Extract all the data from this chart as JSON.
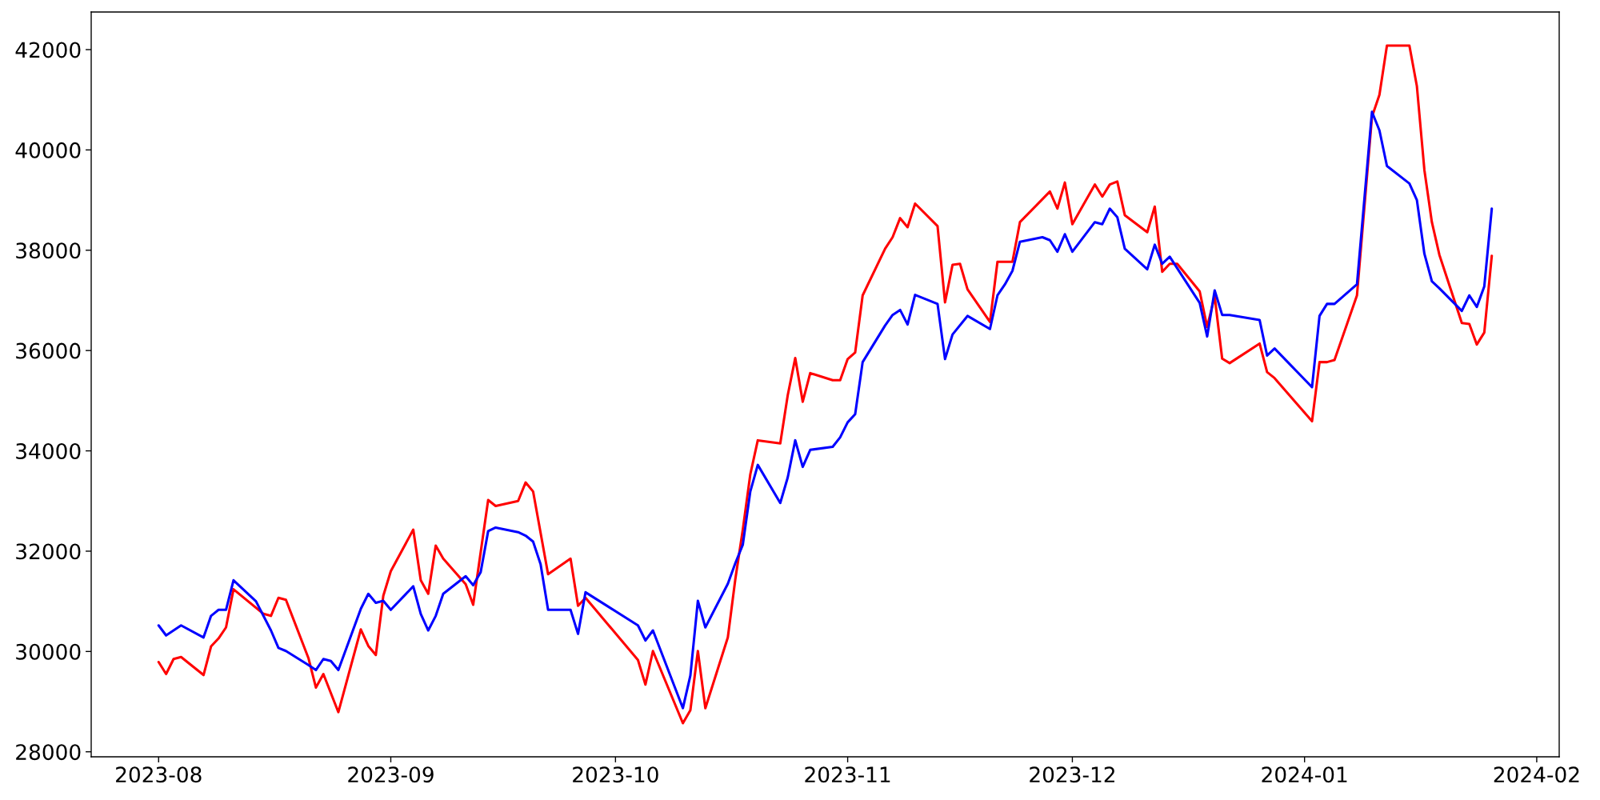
{
  "chart_data": {
    "type": "line",
    "xlim": [
      "2023-07-23",
      "2024-02-04"
    ],
    "ylim": [
      27900,
      42750
    ],
    "xticks": [
      "2023-08",
      "2023-09",
      "2023-10",
      "2023-11",
      "2023-12",
      "2024-01",
      "2024-02"
    ],
    "yticks": [
      28000,
      30000,
      32000,
      34000,
      36000,
      38000,
      40000,
      42000
    ],
    "series": [
      {
        "color": "#ff0000",
        "x": [
          "2023-08-01",
          "2023-08-02",
          "2023-08-03",
          "2023-08-04",
          "2023-08-07",
          "2023-08-08",
          "2023-08-09",
          "2023-08-10",
          "2023-08-11",
          "2023-08-15",
          "2023-08-16",
          "2023-08-17",
          "2023-08-18",
          "2023-08-21",
          "2023-08-22",
          "2023-08-23",
          "2023-08-25",
          "2023-08-28",
          "2023-08-29",
          "2023-08-30",
          "2023-08-31",
          "2023-09-01",
          "2023-09-04",
          "2023-09-05",
          "2023-09-06",
          "2023-09-07",
          "2023-09-08",
          "2023-09-11",
          "2023-09-12",
          "2023-09-14",
          "2023-09-15",
          "2023-09-18",
          "2023-09-19",
          "2023-09-20",
          "2023-09-22",
          "2023-09-25",
          "2023-09-26",
          "2023-09-27",
          "2023-10-04",
          "2023-10-05",
          "2023-10-06",
          "2023-10-10",
          "2023-10-11",
          "2023-10-12",
          "2023-10-13",
          "2023-10-16",
          "2023-10-17",
          "2023-10-18",
          "2023-10-19",
          "2023-10-20",
          "2023-10-23",
          "2023-10-24",
          "2023-10-25",
          "2023-10-26",
          "2023-10-27",
          "2023-10-30",
          "2023-10-31",
          "2023-11-01",
          "2023-11-02",
          "2023-11-03",
          "2023-11-06",
          "2023-11-07",
          "2023-11-08",
          "2023-11-09",
          "2023-11-10",
          "2023-11-13",
          "2023-11-14",
          "2023-11-15",
          "2023-11-16",
          "2023-11-17",
          "2023-11-20",
          "2023-11-21",
          "2023-11-22",
          "2023-11-23",
          "2023-11-24",
          "2023-11-28",
          "2023-11-29",
          "2023-11-30",
          "2023-12-01",
          "2023-12-04",
          "2023-12-05",
          "2023-12-06",
          "2023-12-07",
          "2023-12-08",
          "2023-12-11",
          "2023-12-12",
          "2023-12-13",
          "2023-12-14",
          "2023-12-15",
          "2023-12-18",
          "2023-12-19",
          "2023-12-20",
          "2023-12-21",
          "2023-12-22",
          "2023-12-26",
          "2023-12-27",
          "2023-12-28",
          "2024-01-02",
          "2024-01-03",
          "2024-01-04",
          "2024-01-05",
          "2024-01-08",
          "2024-01-10",
          "2024-01-11",
          "2024-01-12",
          "2024-01-15",
          "2024-01-16",
          "2024-01-17",
          "2024-01-18",
          "2024-01-19",
          "2024-01-22",
          "2024-01-23",
          "2024-01-24",
          "2024-01-25",
          "2024-01-26"
        ],
        "values": [
          29790,
          29550,
          29850,
          29890,
          29530,
          30100,
          30260,
          30480,
          31240,
          30750,
          30710,
          31070,
          31030,
          29870,
          29280,
          29550,
          28790,
          30440,
          30110,
          29930,
          31110,
          31600,
          32430,
          31420,
          31150,
          32110,
          31850,
          31340,
          30930,
          33020,
          32900,
          33000,
          33370,
          33190,
          31540,
          31850,
          30910,
          31070,
          29830,
          29340,
          30010,
          28570,
          28830,
          30010,
          28870,
          30280,
          31440,
          32430,
          33530,
          34210,
          34150,
          35110,
          35850,
          34980,
          35550,
          35410,
          35410,
          35830,
          35960,
          37100,
          38030,
          38260,
          38640,
          38460,
          38930,
          38480,
          36960,
          37710,
          37730,
          37220,
          36570,
          37770,
          37770,
          37770,
          38560,
          39170,
          38830,
          39350,
          38520,
          39310,
          39070,
          39310,
          39370,
          38700,
          38360,
          38870,
          37570,
          37730,
          37730,
          37180,
          36470,
          37080,
          35840,
          35750,
          36140,
          35570,
          35450,
          34590,
          35770,
          35770,
          35810,
          37100,
          40660,
          41100,
          42080,
          42080,
          41270,
          39600,
          38560,
          37910,
          36550,
          36530,
          36120,
          36360,
          37890
        ]
      },
      {
        "color": "#0000ff",
        "x": [
          "2023-08-01",
          "2023-08-02",
          "2023-08-04",
          "2023-08-07",
          "2023-08-08",
          "2023-08-09",
          "2023-08-10",
          "2023-08-11",
          "2023-08-14",
          "2023-08-16",
          "2023-08-17",
          "2023-08-18",
          "2023-08-21",
          "2023-08-22",
          "2023-08-23",
          "2023-08-24",
          "2023-08-25",
          "2023-08-28",
          "2023-08-29",
          "2023-08-30",
          "2023-08-31",
          "2023-09-01",
          "2023-09-04",
          "2023-09-05",
          "2023-09-06",
          "2023-09-07",
          "2023-09-08",
          "2023-09-11",
          "2023-09-12",
          "2023-09-13",
          "2023-09-14",
          "2023-09-15",
          "2023-09-18",
          "2023-09-19",
          "2023-09-20",
          "2023-09-21",
          "2023-09-22",
          "2023-09-25",
          "2023-09-26",
          "2023-09-27",
          "2023-10-04",
          "2023-10-05",
          "2023-10-06",
          "2023-10-10",
          "2023-10-11",
          "2023-10-12",
          "2023-10-13",
          "2023-10-16",
          "2023-10-17",
          "2023-10-18",
          "2023-10-19",
          "2023-10-20",
          "2023-10-23",
          "2023-10-24",
          "2023-10-25",
          "2023-10-26",
          "2023-10-27",
          "2023-10-30",
          "2023-10-31",
          "2023-11-01",
          "2023-11-02",
          "2023-11-03",
          "2023-11-06",
          "2023-11-07",
          "2023-11-08",
          "2023-11-09",
          "2023-11-10",
          "2023-11-13",
          "2023-11-14",
          "2023-11-15",
          "2023-11-17",
          "2023-11-20",
          "2023-11-21",
          "2023-11-22",
          "2023-11-23",
          "2023-11-24",
          "2023-11-27",
          "2023-11-28",
          "2023-11-29",
          "2023-11-30",
          "2023-12-01",
          "2023-12-04",
          "2023-12-05",
          "2023-12-06",
          "2023-12-07",
          "2023-12-08",
          "2023-12-11",
          "2023-12-12",
          "2023-12-13",
          "2023-12-14",
          "2023-12-18",
          "2023-12-19",
          "2023-12-20",
          "2023-12-21",
          "2023-12-22",
          "2023-12-26",
          "2023-12-27",
          "2023-12-28",
          "2024-01-02",
          "2024-01-03",
          "2024-01-04",
          "2024-01-05",
          "2024-01-08",
          "2024-01-10",
          "2024-01-11",
          "2024-01-12",
          "2024-01-15",
          "2024-01-16",
          "2024-01-17",
          "2024-01-18",
          "2024-01-19",
          "2024-01-22",
          "2024-01-23",
          "2024-01-24",
          "2024-01-25",
          "2024-01-26"
        ],
        "values": [
          30520,
          30320,
          30520,
          30280,
          30710,
          30830,
          30830,
          31420,
          31000,
          30420,
          30070,
          30010,
          29730,
          29630,
          29850,
          29810,
          29630,
          30850,
          31150,
          30970,
          31010,
          30830,
          31300,
          30750,
          30420,
          30710,
          31150,
          31500,
          31320,
          31580,
          32400,
          32470,
          32380,
          32310,
          32190,
          31740,
          30830,
          30830,
          30350,
          31180,
          30520,
          30220,
          30420,
          28870,
          29520,
          31010,
          30480,
          31350,
          31760,
          32130,
          33190,
          33720,
          32960,
          33470,
          34210,
          33680,
          34020,
          34080,
          34270,
          34570,
          34730,
          35770,
          36500,
          36710,
          36810,
          36520,
          37110,
          36930,
          35830,
          36320,
          36690,
          36430,
          37100,
          37320,
          37590,
          38170,
          38260,
          38200,
          37970,
          38320,
          37970,
          38560,
          38520,
          38830,
          38660,
          38030,
          37620,
          38110,
          37730,
          37870,
          36950,
          36280,
          37200,
          36710,
          36710,
          36610,
          35900,
          36040,
          35270,
          36690,
          36930,
          36930,
          37320,
          40760,
          40390,
          39680,
          39330,
          39000,
          37930,
          37380,
          37240,
          36790,
          37100,
          36870,
          37280,
          38830
        ]
      }
    ]
  }
}
